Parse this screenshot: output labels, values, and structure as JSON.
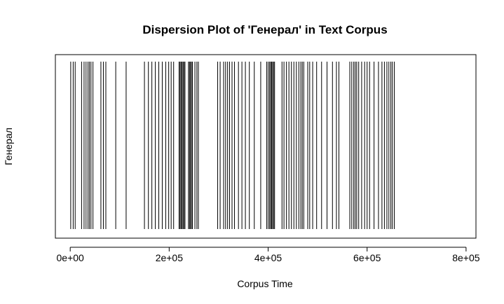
{
  "chart_data": {
    "type": "dispersion",
    "title": "Dispersion Plot of 'Генерал' in Text Corpus",
    "xlabel": "Corpus Time",
    "ylabel": "Генерал",
    "xlim": [
      -30000,
      820000
    ],
    "x_ticks": [
      0,
      200000,
      400000,
      600000,
      800000
    ],
    "x_tick_labels": [
      "0e+00",
      "2e+05",
      "4e+05",
      "6e+05",
      "8e+05"
    ],
    "grid": false,
    "legend": "none",
    "line_color": "#000000",
    "series": [
      {
        "values": [
          1000,
          6000,
          10000,
          23000,
          28000,
          32000,
          36000,
          39000,
          42000,
          46000,
          62000,
          67000,
          72000,
          92000,
          113000,
          150000,
          158000,
          165000,
          172000,
          179000,
          186000,
          193000,
          199000,
          204000,
          209000,
          220000,
          222000,
          224000,
          226000,
          228000,
          230000,
          232000,
          239000,
          241000,
          243000,
          245000,
          247000,
          252000,
          256000,
          259000,
          298000,
          303000,
          310000,
          314000,
          318000,
          322000,
          327000,
          332000,
          340000,
          347000,
          354000,
          362000,
          372000,
          385000,
          397000,
          400000,
          403000,
          405000,
          407000,
          409000,
          411000,
          413000,
          428000,
          432000,
          437000,
          442000,
          447000,
          452000,
          457000,
          462000,
          466000,
          469000,
          472000,
          480000,
          484000,
          490000,
          498000,
          508000,
          519000,
          530000,
          538000,
          543000,
          565000,
          569000,
          573000,
          576000,
          579000,
          583000,
          589000,
          595000,
          600000,
          605000,
          614000,
          623000,
          630000,
          635000,
          640000,
          644000,
          648000,
          651000,
          655000
        ]
      }
    ]
  }
}
